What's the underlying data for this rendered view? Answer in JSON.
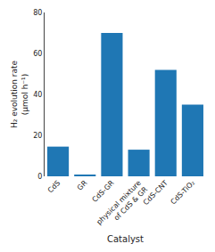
{
  "chart_data": {
    "type": "bar",
    "categories": [
      "CdS",
      "GR",
      "CdS-GR",
      "physical mixture\nof CdS & GR",
      "CdS-CNT",
      "CdS-TiO₂"
    ],
    "values": [
      14.5,
      0.5,
      70.0,
      13.0,
      52.0,
      35.0
    ],
    "xlabel": "Catalyst",
    "ylabel": "H₂ evolution rate\n(μmol h⁻¹)",
    "ylim": [
      0,
      80
    ],
    "yticks": [
      0,
      20,
      40,
      60,
      80
    ],
    "grid": false
  }
}
